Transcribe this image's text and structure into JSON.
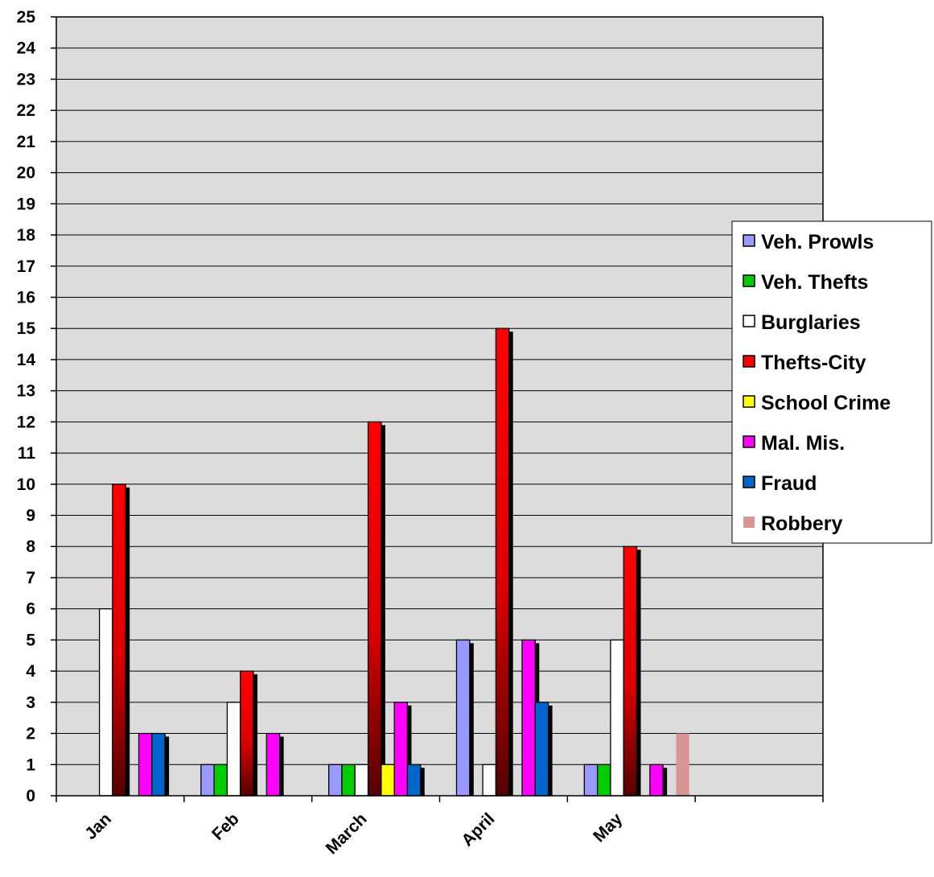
{
  "chart_data": {
    "type": "bar",
    "categories": [
      "Jan",
      "Feb",
      "March",
      "April",
      "May",
      ""
    ],
    "ylim": [
      0,
      25
    ],
    "y_ticks": [
      0,
      1,
      2,
      3,
      4,
      5,
      6,
      7,
      8,
      9,
      10,
      11,
      12,
      13,
      14,
      15,
      16,
      17,
      18,
      19,
      20,
      21,
      22,
      23,
      24,
      25
    ],
    "grid": true,
    "legend_position": "right",
    "series": [
      {
        "name": "Veh. Prowls",
        "color": "#9999ff",
        "values": [
          0,
          1,
          1,
          5,
          1,
          0
        ]
      },
      {
        "name": "Veh. Thefts",
        "color": "#00cc00",
        "values": [
          0,
          1,
          1,
          0,
          1,
          0
        ]
      },
      {
        "name": "Burglaries",
        "color": "#ffffff",
        "values": [
          6,
          3,
          1,
          1,
          5,
          0
        ]
      },
      {
        "name": "Thefts-City",
        "color": "#ff0000",
        "values": [
          10,
          4,
          12,
          15,
          8,
          0
        ]
      },
      {
        "name": "School Crime",
        "color": "#ffff00",
        "values": [
          0,
          0,
          1,
          0,
          0,
          0
        ]
      },
      {
        "name": "Mal. Mis.",
        "color": "#ff00ff",
        "values": [
          2,
          2,
          3,
          5,
          1,
          0
        ]
      },
      {
        "name": "Fraud",
        "color": "#0066cc",
        "values": [
          2,
          0,
          1,
          3,
          0,
          0
        ]
      },
      {
        "name": "Robbery",
        "color": "#d99594",
        "values": [
          0,
          0,
          0,
          0,
          2,
          0
        ]
      }
    ]
  }
}
